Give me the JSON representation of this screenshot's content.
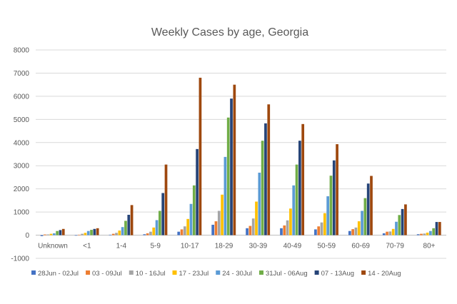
{
  "chart_data": {
    "type": "bar",
    "title": "Weekly Cases by age, Georgia",
    "xlabel": "",
    "ylabel": "",
    "ylim": [
      -1000,
      8000
    ],
    "yticks": [
      -1000,
      0,
      1000,
      2000,
      3000,
      4000,
      5000,
      6000,
      7000,
      8000
    ],
    "grid": true,
    "legend_position": "bottom",
    "categories": [
      "Unknown",
      "<1",
      "1-4",
      "5-9",
      "10-17",
      "18-29",
      "30-39",
      "40-49",
      "50-59",
      "60-69",
      "70-79",
      "80+"
    ],
    "series": [
      {
        "name": "28Jun - 02Jul",
        "color": "#4472C4",
        "values": [
          -40,
          -20,
          20,
          40,
          150,
          450,
          300,
          300,
          250,
          180,
          80,
          40
        ]
      },
      {
        "name": "03 - 09Jul",
        "color": "#ED7D31",
        "values": [
          30,
          20,
          60,
          80,
          250,
          600,
          400,
          420,
          380,
          260,
          150,
          60
        ]
      },
      {
        "name": "10 - 16Jul",
        "color": "#A5A5A5",
        "values": [
          30,
          60,
          100,
          150,
          380,
          1050,
          720,
          640,
          550,
          330,
          160,
          70
        ]
      },
      {
        "name": "17 - 23Jul",
        "color": "#FFC000",
        "values": [
          60,
          100,
          200,
          330,
          700,
          1750,
          1450,
          1150,
          950,
          600,
          270,
          110
        ]
      },
      {
        "name": "24 - 30Jul",
        "color": "#5B9BD5",
        "values": [
          80,
          180,
          350,
          650,
          1350,
          3380,
          2700,
          2150,
          1680,
          1050,
          580,
          180
        ]
      },
      {
        "name": "31Jul - 06Aug",
        "color": "#70AD47",
        "values": [
          180,
          230,
          620,
          1050,
          2150,
          5080,
          4080,
          3050,
          2570,
          1600,
          870,
          300
        ]
      },
      {
        "name": "07 - 13Aug",
        "color": "#264478",
        "values": [
          220,
          270,
          880,
          1820,
          3720,
          5900,
          4830,
          4080,
          3230,
          2230,
          1130,
          570
        ]
      },
      {
        "name": "14 - 20Aug",
        "color": "#9E480E",
        "values": [
          270,
          300,
          1300,
          3050,
          6800,
          6500,
          5650,
          4800,
          3930,
          2560,
          1330,
          570
        ]
      }
    ]
  }
}
